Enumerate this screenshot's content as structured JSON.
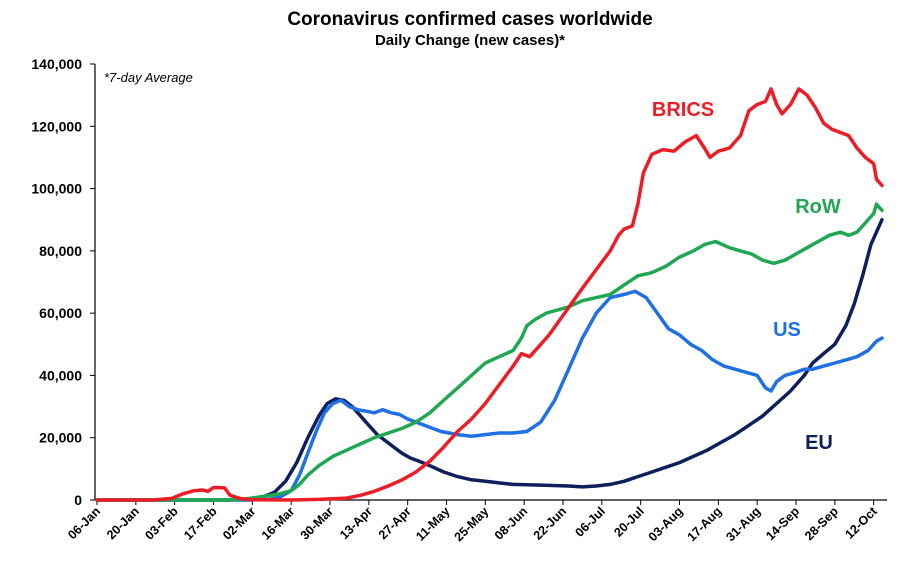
{
  "chart_data": {
    "type": "line",
    "title": "Coronavirus confirmed cases worldwide",
    "subtitle": "Daily Change (new cases)*",
    "note": "*7-day Average",
    "xlabel": "",
    "ylabel": "",
    "ylim": [
      0,
      140000
    ],
    "y_ticks": [
      "0",
      "20,000",
      "40,000",
      "60,000",
      "80,000",
      "100,000",
      "120,000",
      "140,000"
    ],
    "x_tick_labels": [
      "06-Jan",
      "20-Jan",
      "03-Feb",
      "17-Feb",
      "02-Mar",
      "16-Mar",
      "30-Mar",
      "13-Apr",
      "27-Apr",
      "11-May",
      "25-May",
      "08-Jun",
      "22-Jun",
      "06-Jul",
      "20-Jul",
      "03-Aug",
      "17-Aug",
      "31-Aug",
      "14-Sep",
      "28-Sep",
      "12-Oct"
    ],
    "x_day_range": [
      0,
      283
    ],
    "grid": false,
    "series": [
      {
        "name": "BRICS",
        "color": "#ee1c25",
        "points": [
          [
            0,
            0
          ],
          [
            20,
            0
          ],
          [
            27,
            500
          ],
          [
            31,
            2000
          ],
          [
            35,
            3000
          ],
          [
            38,
            3200
          ],
          [
            40,
            2800
          ],
          [
            42,
            4000
          ],
          [
            46,
            3900
          ],
          [
            48,
            1500
          ],
          [
            52,
            400
          ],
          [
            56,
            100
          ],
          [
            70,
            0
          ],
          [
            80,
            200
          ],
          [
            90,
            600
          ],
          [
            95,
            1500
          ],
          [
            100,
            2800
          ],
          [
            105,
            4500
          ],
          [
            110,
            6500
          ],
          [
            115,
            9000
          ],
          [
            120,
            12500
          ],
          [
            125,
            17000
          ],
          [
            130,
            22000
          ],
          [
            135,
            26000
          ],
          [
            140,
            31000
          ],
          [
            145,
            37000
          ],
          [
            150,
            43000
          ],
          [
            153,
            47000
          ],
          [
            156,
            46000
          ],
          [
            160,
            50000
          ],
          [
            163,
            53000
          ],
          [
            167,
            58000
          ],
          [
            171,
            63000
          ],
          [
            175,
            68000
          ],
          [
            180,
            74000
          ],
          [
            185,
            80000
          ],
          [
            188,
            85000
          ],
          [
            190,
            87000
          ],
          [
            193,
            88000
          ],
          [
            195,
            95000
          ],
          [
            197,
            105000
          ],
          [
            200,
            111000
          ],
          [
            204,
            112500
          ],
          [
            208,
            112000
          ],
          [
            212,
            115000
          ],
          [
            216,
            117000
          ],
          [
            219,
            113000
          ],
          [
            221,
            110000
          ],
          [
            224,
            112000
          ],
          [
            228,
            113000
          ],
          [
            232,
            117000
          ],
          [
            235,
            125000
          ],
          [
            238,
            127000
          ],
          [
            241,
            128000
          ],
          [
            243,
            132000
          ],
          [
            245,
            127000
          ],
          [
            247,
            124000
          ],
          [
            250,
            127000
          ],
          [
            253,
            132000
          ],
          [
            256,
            130000
          ],
          [
            259,
            126000
          ],
          [
            262,
            121000
          ],
          [
            265,
            119000
          ],
          [
            268,
            118000
          ],
          [
            271,
            117000
          ],
          [
            274,
            113000
          ],
          [
            277,
            110000
          ],
          [
            280,
            108000
          ],
          [
            281,
            103000
          ],
          [
            283,
            101000
          ]
        ]
      },
      {
        "name": "RoW",
        "color": "#1fa851",
        "points": [
          [
            0,
            0
          ],
          [
            30,
            0
          ],
          [
            48,
            0
          ],
          [
            55,
            500
          ],
          [
            60,
            1200
          ],
          [
            65,
            1800
          ],
          [
            70,
            3000
          ],
          [
            73,
            5000
          ],
          [
            76,
            8000
          ],
          [
            80,
            11000
          ],
          [
            85,
            14000
          ],
          [
            90,
            16000
          ],
          [
            95,
            18000
          ],
          [
            100,
            20000
          ],
          [
            105,
            21500
          ],
          [
            110,
            23000
          ],
          [
            115,
            25000
          ],
          [
            120,
            28000
          ],
          [
            125,
            32000
          ],
          [
            130,
            36000
          ],
          [
            135,
            40000
          ],
          [
            140,
            44000
          ],
          [
            145,
            46000
          ],
          [
            150,
            48000
          ],
          [
            153,
            52000
          ],
          [
            155,
            56000
          ],
          [
            158,
            58000
          ],
          [
            162,
            60000
          ],
          [
            166,
            61000
          ],
          [
            170,
            62000
          ],
          [
            175,
            64000
          ],
          [
            180,
            65000
          ],
          [
            185,
            66000
          ],
          [
            190,
            69000
          ],
          [
            195,
            72000
          ],
          [
            200,
            73000
          ],
          [
            205,
            75000
          ],
          [
            210,
            78000
          ],
          [
            215,
            80000
          ],
          [
            219,
            82000
          ],
          [
            223,
            83000
          ],
          [
            228,
            81000
          ],
          [
            232,
            80000
          ],
          [
            236,
            79000
          ],
          [
            240,
            77000
          ],
          [
            244,
            76000
          ],
          [
            248,
            77000
          ],
          [
            252,
            79000
          ],
          [
            256,
            81000
          ],
          [
            260,
            83000
          ],
          [
            264,
            85000
          ],
          [
            268,
            86000
          ],
          [
            271,
            85000
          ],
          [
            274,
            86000
          ],
          [
            277,
            89000
          ],
          [
            280,
            92000
          ],
          [
            281,
            95000
          ],
          [
            283,
            93000
          ]
        ]
      },
      {
        "name": "US",
        "color": "#1f6fe5",
        "points": [
          [
            0,
            0
          ],
          [
            55,
            0
          ],
          [
            62,
            200
          ],
          [
            66,
            1000
          ],
          [
            70,
            3000
          ],
          [
            73,
            8000
          ],
          [
            76,
            15000
          ],
          [
            79,
            22000
          ],
          [
            82,
            28000
          ],
          [
            85,
            31000
          ],
          [
            88,
            32000
          ],
          [
            91,
            30000
          ],
          [
            94,
            29000
          ],
          [
            97,
            28500
          ],
          [
            100,
            28000
          ],
          [
            103,
            29000
          ],
          [
            106,
            28000
          ],
          [
            109,
            27500
          ],
          [
            112,
            26000
          ],
          [
            115,
            25000
          ],
          [
            118,
            24000
          ],
          [
            121,
            23000
          ],
          [
            124,
            22000
          ],
          [
            127,
            21500
          ],
          [
            130,
            21000
          ],
          [
            135,
            20500
          ],
          [
            140,
            21000
          ],
          [
            145,
            21500
          ],
          [
            150,
            21500
          ],
          [
            155,
            22000
          ],
          [
            160,
            25000
          ],
          [
            165,
            32000
          ],
          [
            170,
            42000
          ],
          [
            175,
            52000
          ],
          [
            180,
            60000
          ],
          [
            185,
            65000
          ],
          [
            190,
            66000
          ],
          [
            194,
            67000
          ],
          [
            198,
            65000
          ],
          [
            202,
            60000
          ],
          [
            206,
            55000
          ],
          [
            210,
            53000
          ],
          [
            214,
            50000
          ],
          [
            218,
            48000
          ],
          [
            222,
            45000
          ],
          [
            226,
            43000
          ],
          [
            230,
            42000
          ],
          [
            234,
            41000
          ],
          [
            238,
            40000
          ],
          [
            241,
            36000
          ],
          [
            243,
            35000
          ],
          [
            245,
            38000
          ],
          [
            248,
            40000
          ],
          [
            252,
            41000
          ],
          [
            255,
            42000
          ],
          [
            258,
            42000
          ],
          [
            262,
            43000
          ],
          [
            266,
            44000
          ],
          [
            270,
            45000
          ],
          [
            274,
            46000
          ],
          [
            278,
            48000
          ],
          [
            281,
            51000
          ],
          [
            283,
            52000
          ]
        ]
      },
      {
        "name": "EU",
        "color": "#0d1f5c",
        "points": [
          [
            0,
            0
          ],
          [
            48,
            0
          ],
          [
            55,
            300
          ],
          [
            60,
            1000
          ],
          [
            64,
            2500
          ],
          [
            68,
            6000
          ],
          [
            72,
            12000
          ],
          [
            76,
            20000
          ],
          [
            80,
            27000
          ],
          [
            83,
            31000
          ],
          [
            86,
            32500
          ],
          [
            89,
            32000
          ],
          [
            92,
            30000
          ],
          [
            95,
            27000
          ],
          [
            98,
            24000
          ],
          [
            101,
            21000
          ],
          [
            104,
            19000
          ],
          [
            107,
            17000
          ],
          [
            110,
            15000
          ],
          [
            113,
            13500
          ],
          [
            116,
            12500
          ],
          [
            120,
            11000
          ],
          [
            125,
            9000
          ],
          [
            130,
            7500
          ],
          [
            135,
            6500
          ],
          [
            140,
            6000
          ],
          [
            145,
            5500
          ],
          [
            150,
            5000
          ],
          [
            160,
            4800
          ],
          [
            170,
            4500
          ],
          [
            175,
            4200
          ],
          [
            180,
            4500
          ],
          [
            185,
            5000
          ],
          [
            190,
            6000
          ],
          [
            195,
            7500
          ],
          [
            200,
            9000
          ],
          [
            205,
            10500
          ],
          [
            210,
            12000
          ],
          [
            215,
            14000
          ],
          [
            220,
            16000
          ],
          [
            225,
            18500
          ],
          [
            230,
            21000
          ],
          [
            235,
            24000
          ],
          [
            240,
            27000
          ],
          [
            245,
            31000
          ],
          [
            250,
            35000
          ],
          [
            255,
            40000
          ],
          [
            258,
            44000
          ],
          [
            262,
            47000
          ],
          [
            266,
            50000
          ],
          [
            270,
            56000
          ],
          [
            273,
            63000
          ],
          [
            276,
            72000
          ],
          [
            279,
            82000
          ],
          [
            282,
            88000
          ],
          [
            283,
            90000
          ]
        ]
      }
    ]
  }
}
